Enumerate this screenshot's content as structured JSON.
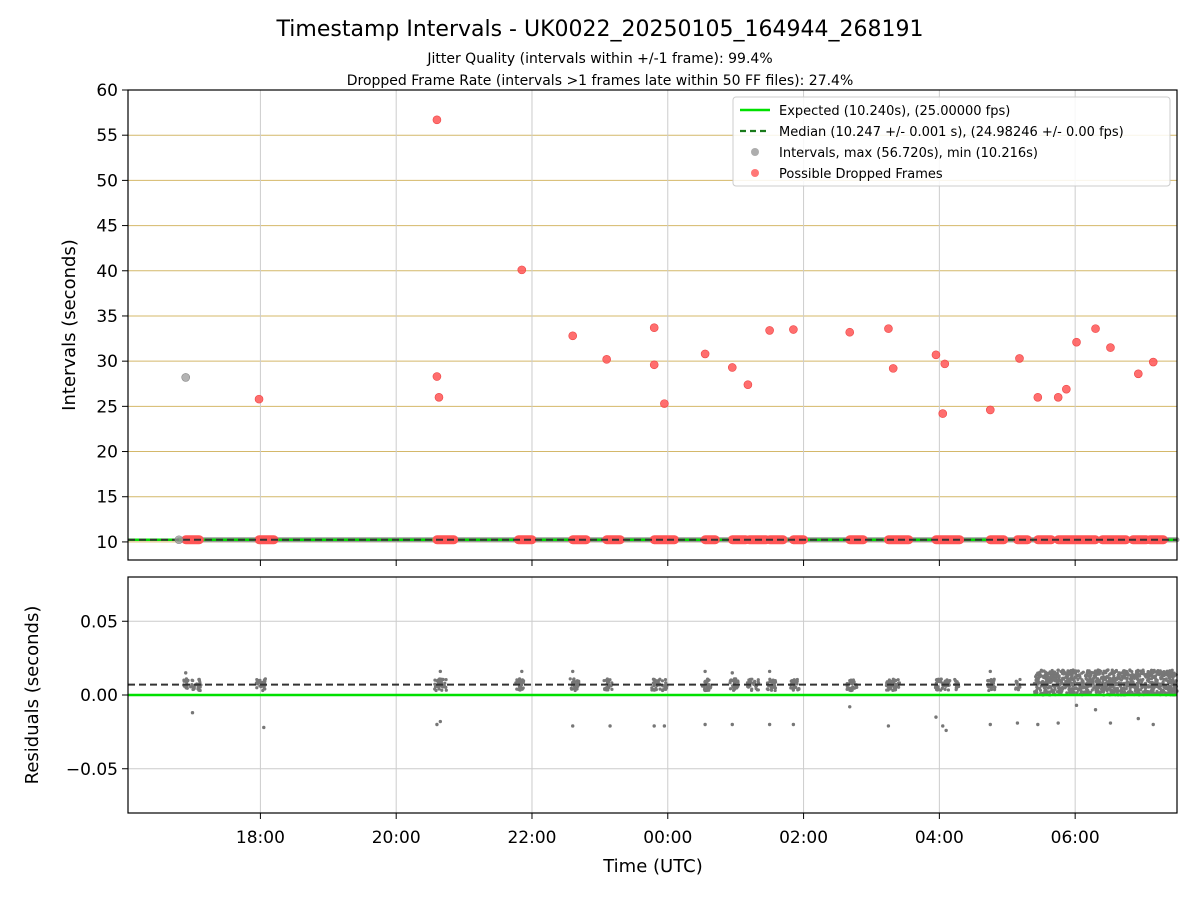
{
  "chart_data": [
    {
      "type": "scatter",
      "title": "Timestamp Intervals - UK0022_20250105_164944_268191",
      "subtitle_lines": [
        "Jitter Quality (intervals within +/-1 frame): 99.4%",
        "Dropped Frame Rate (intervals >1 frames late within 50 FF files): 27.4%"
      ],
      "xlabel": "",
      "ylabel": "Intervals (seconds)",
      "xlim_hours": [
        16.05,
        31.5
      ],
      "ylim": [
        8,
        60
      ],
      "yticks": [
        10,
        15,
        20,
        25,
        30,
        35,
        40,
        45,
        50,
        55,
        60
      ],
      "ytick_labels": [
        "10",
        "15",
        "20",
        "25",
        "30",
        "35",
        "40",
        "45",
        "50",
        "55",
        "60"
      ],
      "grid": "on (horizontal lines goldenrod, vertical lines light gray)",
      "grid_colors": {
        "horizontal": "#d4b86a",
        "vertical": "#cccccc"
      },
      "reference_lines": {
        "expected": {
          "value": 10.24,
          "color": "#00e000",
          "style": "solid"
        },
        "median": {
          "value": 10.247,
          "color": "#2e7d32",
          "style": "dashed"
        }
      },
      "legend": {
        "placement": "top-right",
        "entries": [
          {
            "label": "Expected (10.240s), (25.00000 fps)",
            "color": "#00e000",
            "marker": "solid-line"
          },
          {
            "label": "Median (10.247 +/- 0.001 s), (24.98246 +/- 0.00 fps)",
            "color": "#1a7a1a",
            "marker": "dashed-line"
          },
          {
            "label": "Intervals, max (56.720s), min (10.216s)",
            "color": "#999999",
            "marker": "dot"
          },
          {
            "label": "Possible Dropped Frames",
            "color": "#ff5555",
            "marker": "dot"
          }
        ]
      },
      "series": [
        {
          "name": "Intervals, max (56.720s), min (10.216s)",
          "color": "#999999",
          "points": [
            [
              16.9,
              28.2
            ],
            [
              16.8,
              10.24
            ]
          ],
          "baseline_band": {
            "value": 10.24,
            "x_from": 16.8,
            "x_to": 31.5
          }
        },
        {
          "name": "Possible Dropped Frames",
          "color": "#ff5555",
          "points": [
            [
              17.98,
              25.8
            ],
            [
              20.6,
              56.7
            ],
            [
              20.6,
              28.3
            ],
            [
              20.63,
              26.0
            ],
            [
              21.85,
              40.1
            ],
            [
              22.6,
              32.8
            ],
            [
              23.1,
              30.2
            ],
            [
              23.8,
              33.7
            ],
            [
              23.8,
              29.6
            ],
            [
              23.95,
              25.3
            ],
            [
              24.55,
              30.8
            ],
            [
              24.95,
              29.3
            ],
            [
              25.18,
              27.4
            ],
            [
              25.5,
              33.4
            ],
            [
              25.85,
              33.5
            ],
            [
              26.68,
              33.2
            ],
            [
              27.25,
              33.6
            ],
            [
              27.32,
              29.2
            ],
            [
              27.95,
              30.7
            ],
            [
              28.08,
              29.7
            ],
            [
              28.05,
              24.2
            ],
            [
              28.75,
              24.6
            ],
            [
              29.18,
              30.3
            ],
            [
              29.45,
              26.0
            ],
            [
              29.75,
              26.0
            ],
            [
              29.87,
              26.9
            ],
            [
              30.02,
              32.1
            ],
            [
              30.3,
              33.6
            ],
            [
              30.52,
              31.5
            ],
            [
              30.93,
              28.6
            ],
            [
              31.15,
              29.9
            ]
          ],
          "baseline_clusters": [
            [
              16.9,
              17.1
            ],
            [
              17.98,
              18.2
            ],
            [
              20.6,
              20.85
            ],
            [
              21.8,
              22.0
            ],
            [
              22.6,
              22.8
            ],
            [
              23.1,
              23.3
            ],
            [
              23.8,
              24.1
            ],
            [
              24.55,
              24.7
            ],
            [
              24.95,
              25.15
            ],
            [
              25.2,
              25.45
            ],
            [
              25.5,
              25.7
            ],
            [
              25.85,
              26.0
            ],
            [
              26.68,
              26.88
            ],
            [
              27.25,
              27.55
            ],
            [
              27.95,
              28.3
            ],
            [
              28.75,
              28.95
            ],
            [
              29.15,
              29.3
            ],
            [
              29.45,
              29.65
            ],
            [
              29.75,
              30.3
            ],
            [
              30.4,
              30.75
            ],
            [
              30.85,
              31.05
            ],
            [
              31.1,
              31.3
            ]
          ]
        }
      ]
    },
    {
      "type": "scatter",
      "title": "",
      "xlabel": "Time (UTC)",
      "ylabel": "Residuals (seconds)",
      "xlim_hours": [
        16.05,
        31.5
      ],
      "ylim": [
        -0.08,
        0.08
      ],
      "yticks": [
        -0.05,
        0.0,
        0.05
      ],
      "ytick_labels": [
        "−0.05",
        "0.00",
        "0.05"
      ],
      "xticks_hours": [
        18,
        20,
        22,
        24,
        26,
        28,
        30
      ],
      "xtick_labels": [
        "18:00",
        "20:00",
        "22:00",
        "00:00",
        "02:00",
        "04:00",
        "06:00"
      ],
      "grid": "on (light gray)",
      "reference_lines": {
        "zero": {
          "value": 0.0,
          "color": "#00e000",
          "style": "solid"
        },
        "median": {
          "value": 0.007,
          "color": "#2e7d32",
          "style": "dashed"
        }
      },
      "series": [
        {
          "name": "Residuals",
          "color": "#777777",
          "cluster_centers": [
            16.9,
            17.0,
            17.1,
            17.98,
            18.05,
            20.6,
            20.65,
            20.7,
            21.8,
            21.85,
            22.6,
            22.65,
            23.1,
            23.15,
            23.8,
            23.85,
            23.95,
            24.55,
            24.6,
            24.95,
            25.0,
            25.2,
            25.3,
            25.5,
            25.55,
            25.85,
            25.9,
            26.68,
            26.75,
            27.25,
            27.3,
            27.38,
            27.95,
            28.05,
            28.12,
            28.25,
            28.75,
            28.8,
            29.15
          ],
          "outliers": [
            [
              17.0,
              -0.012
            ],
            [
              18.05,
              -0.022
            ],
            [
              20.6,
              -0.02
            ],
            [
              20.65,
              -0.018
            ],
            [
              21.85,
              0.016
            ],
            [
              22.6,
              -0.021
            ],
            [
              22.6,
              0.016
            ],
            [
              23.15,
              -0.021
            ],
            [
              23.8,
              -0.021
            ],
            [
              23.95,
              -0.021
            ],
            [
              24.55,
              -0.02
            ],
            [
              24.95,
              -0.02
            ],
            [
              25.5,
              -0.02
            ],
            [
              25.5,
              0.016
            ],
            [
              25.85,
              -0.02
            ],
            [
              26.68,
              -0.008
            ],
            [
              27.25,
              -0.021
            ],
            [
              27.95,
              -0.015
            ],
            [
              28.05,
              -0.021
            ],
            [
              28.1,
              -0.024
            ],
            [
              28.75,
              -0.02
            ],
            [
              29.15,
              -0.019
            ],
            [
              29.45,
              -0.02
            ],
            [
              29.75,
              -0.019
            ],
            [
              30.02,
              -0.007
            ],
            [
              30.3,
              -0.01
            ],
            [
              30.52,
              -0.019
            ],
            [
              30.93,
              -0.016
            ],
            [
              31.15,
              -0.02
            ],
            [
              16.9,
              0.015
            ],
            [
              20.65,
              0.016
            ],
            [
              24.55,
              0.016
            ],
            [
              24.95,
              0.015
            ],
            [
              28.75,
              0.016
            ]
          ],
          "dense_band": {
            "x_from": 29.4,
            "x_to": 31.5,
            "y_from": 0.0,
            "y_to": 0.017
          }
        }
      ]
    }
  ]
}
